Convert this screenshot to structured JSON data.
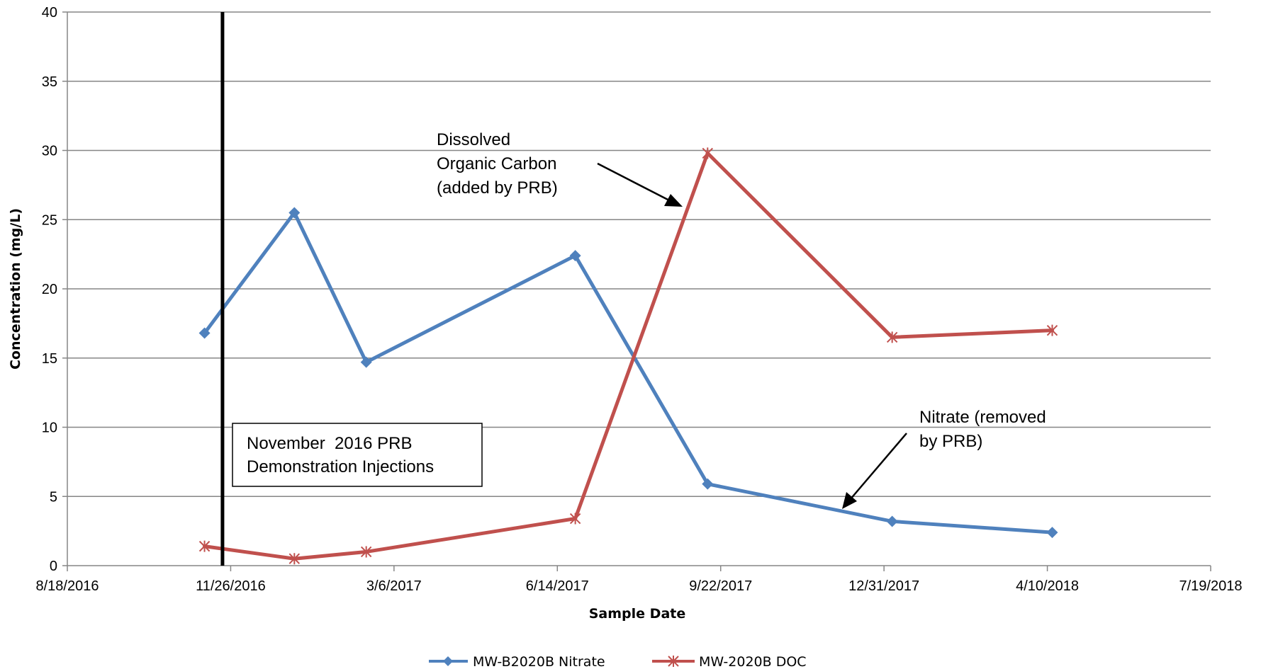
{
  "chart_data": {
    "type": "line",
    "xlabel": "Sample Date",
    "ylabel": "Concentration (mg/L)",
    "ylim": [
      0,
      40
    ],
    "yticks": [
      0,
      5,
      10,
      15,
      20,
      25,
      30,
      35,
      40
    ],
    "xlim": [
      "2016-08-18",
      "2018-07-19"
    ],
    "xtick_labels": [
      "8/18/2016",
      "11/26/2016",
      "3/6/2017",
      "6/14/2017",
      "9/22/2017",
      "12/31/2017",
      "4/10/2018",
      "7/19/2018"
    ],
    "xtick_dates": [
      "2016-08-18",
      "2016-11-26",
      "2017-03-06",
      "2017-06-14",
      "2017-09-22",
      "2017-12-31",
      "2018-04-10",
      "2018-07-19"
    ],
    "grid": "horizontal",
    "legend_position": "bottom",
    "series": [
      {
        "name": "MW-B2020B Nitrate",
        "color": "#4F81BD",
        "marker": "diamond",
        "points": [
          {
            "x": "2016-11-10",
            "y": 16.8
          },
          {
            "x": "2017-01-04",
            "y": 25.5
          },
          {
            "x": "2017-02-17",
            "y": 14.7
          },
          {
            "x": "2017-06-25",
            "y": 22.4
          },
          {
            "x": "2017-09-14",
            "y": 5.9
          },
          {
            "x": "2018-01-05",
            "y": 3.2
          },
          {
            "x": "2018-04-13",
            "y": 2.4
          }
        ]
      },
      {
        "name": "MW-2020B DOC",
        "color": "#C0504D",
        "marker": "star",
        "points": [
          {
            "x": "2016-11-10",
            "y": 1.4
          },
          {
            "x": "2017-01-04",
            "y": 0.5
          },
          {
            "x": "2017-02-17",
            "y": 1.0
          },
          {
            "x": "2017-06-25",
            "y": 3.4
          },
          {
            "x": "2017-09-14",
            "y": 29.8
          },
          {
            "x": "2018-01-05",
            "y": 16.5
          },
          {
            "x": "2018-04-13",
            "y": 17.0
          }
        ]
      }
    ],
    "event_line": {
      "x": "2016-11-21",
      "color": "#000000"
    },
    "annotations": {
      "injection_box": [
        "November  2016 PRB",
        "Demonstration Injections"
      ],
      "doc_label": [
        "Dissolved",
        "Organic Carbon",
        "(added by PRB)"
      ],
      "nitrate_label": [
        "Nitrate (removed",
        "by PRB)"
      ]
    }
  }
}
